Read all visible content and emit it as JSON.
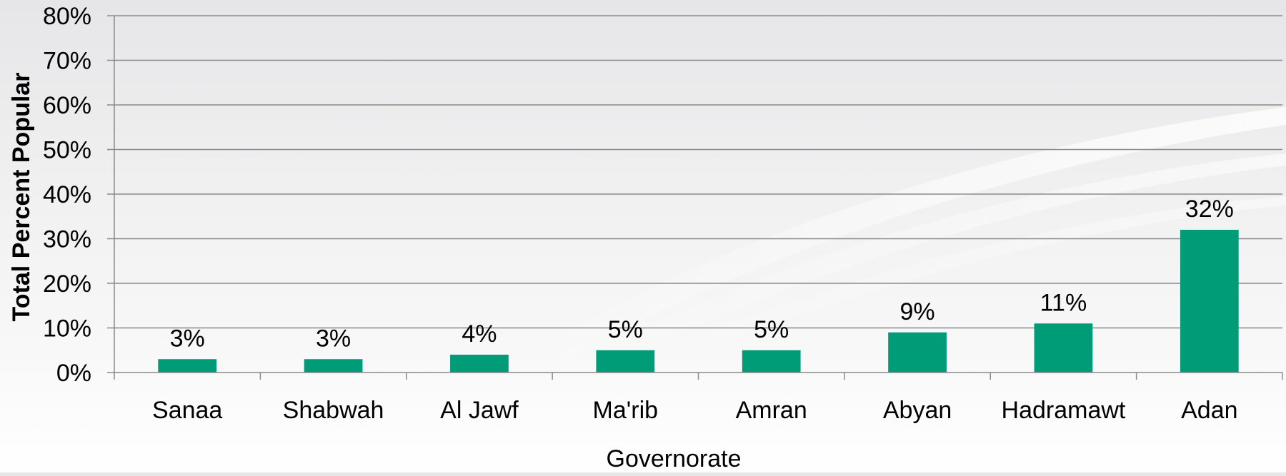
{
  "chart_data": {
    "type": "bar",
    "title": "",
    "xlabel": "Governorate",
    "ylabel": "Total Percent Popular",
    "categories": [
      "Sanaa",
      "Shabwah",
      "Al Jawf",
      "Ma'rib",
      "Amran",
      "Abyan",
      "Hadramawt",
      "Adan"
    ],
    "values": [
      3,
      3,
      4,
      5,
      5,
      9,
      11,
      32
    ],
    "data_labels": [
      "3%",
      "3%",
      "4%",
      "5%",
      "5%",
      "9%",
      "11%",
      "32%"
    ],
    "ylim": [
      0,
      80
    ],
    "yticks": [
      0,
      10,
      20,
      30,
      40,
      50,
      60,
      70,
      80
    ],
    "ytick_labels": [
      "0%",
      "10%",
      "20%",
      "30%",
      "40%",
      "50%",
      "60%",
      "70%",
      "80%"
    ],
    "grid": true,
    "legend": "none",
    "bar_color": "#009b77"
  }
}
